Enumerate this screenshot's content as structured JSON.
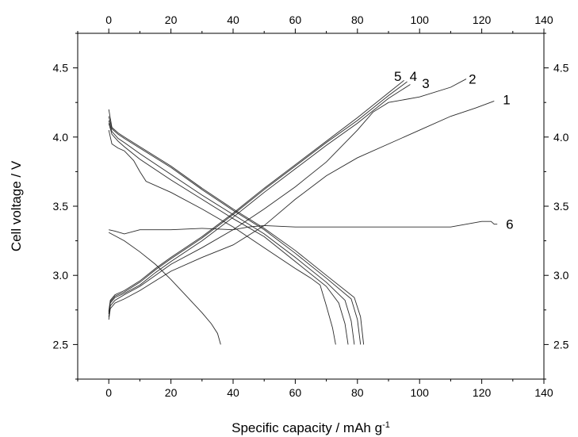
{
  "chart_data": {
    "type": "line",
    "xlabel": "Specific capacity / mAh g",
    "xlabel_superscript": "-1",
    "ylabel": "Cell voltage / V",
    "xlim": [
      -10,
      140
    ],
    "ylim": [
      2.25,
      4.75
    ],
    "x_ticks": [
      0,
      20,
      40,
      60,
      80,
      100,
      120,
      140
    ],
    "x_tick_labels": [
      "0",
      "20",
      "40",
      "60",
      "80",
      "100",
      "120",
      "140"
    ],
    "y_ticks": [
      2.5,
      3.0,
      3.5,
      4.0,
      4.5
    ],
    "y_tick_labels": [
      "2.5",
      "3.0",
      "3.5",
      "4.0",
      "4.5"
    ],
    "grid": false,
    "series": [
      {
        "name": "1",
        "label_at": [
          128,
          4.27
        ],
        "points": [
          [
            0,
            2.68
          ],
          [
            0.5,
            2.76
          ],
          [
            2,
            2.8
          ],
          [
            5,
            2.83
          ],
          [
            10,
            2.89
          ],
          [
            15,
            2.96
          ],
          [
            20,
            3.03
          ],
          [
            30,
            3.13
          ],
          [
            40,
            3.22
          ],
          [
            50,
            3.36
          ],
          [
            60,
            3.55
          ],
          [
            70,
            3.72
          ],
          [
            80,
            3.85
          ],
          [
            90,
            3.95
          ],
          [
            100,
            4.05
          ],
          [
            110,
            4.15
          ],
          [
            118,
            4.21
          ],
          [
            124,
            4.26
          ]
        ]
      },
      {
        "name": "1",
        "points": [
          [
            0,
            4.05
          ],
          [
            1,
            3.95
          ],
          [
            3,
            3.92
          ],
          [
            5,
            3.9
          ],
          [
            8,
            3.83
          ],
          [
            10,
            3.75
          ],
          [
            12,
            3.68
          ],
          [
            20,
            3.6
          ],
          [
            30,
            3.48
          ],
          [
            40,
            3.35
          ],
          [
            50,
            3.2
          ],
          [
            60,
            3.05
          ],
          [
            65,
            2.98
          ],
          [
            68,
            2.93
          ],
          [
            70,
            2.78
          ],
          [
            72,
            2.62
          ],
          [
            73,
            2.5
          ]
        ]
      },
      {
        "name": "2",
        "label_at": [
          117,
          4.42
        ],
        "points": [
          [
            0,
            2.7
          ],
          [
            0.5,
            2.78
          ],
          [
            2,
            2.82
          ],
          [
            5,
            2.86
          ],
          [
            10,
            2.92
          ],
          [
            15,
            3.0
          ],
          [
            20,
            3.08
          ],
          [
            30,
            3.2
          ],
          [
            40,
            3.33
          ],
          [
            50,
            3.48
          ],
          [
            60,
            3.64
          ],
          [
            70,
            3.82
          ],
          [
            80,
            4.05
          ],
          [
            85,
            4.18
          ],
          [
            90,
            4.25
          ],
          [
            100,
            4.29
          ],
          [
            110,
            4.36
          ],
          [
            115,
            4.42
          ]
        ]
      },
      {
        "name": "2",
        "points": [
          [
            0,
            4.1
          ],
          [
            1,
            4.02
          ],
          [
            3,
            3.97
          ],
          [
            5,
            3.93
          ],
          [
            10,
            3.84
          ],
          [
            20,
            3.69
          ],
          [
            30,
            3.55
          ],
          [
            40,
            3.41
          ],
          [
            50,
            3.28
          ],
          [
            60,
            3.1
          ],
          [
            70,
            2.92
          ],
          [
            74,
            2.8
          ],
          [
            76,
            2.65
          ],
          [
            77,
            2.5
          ]
        ]
      },
      {
        "name": "3",
        "label_at": [
          102,
          4.39
        ],
        "points": [
          [
            0,
            2.72
          ],
          [
            0.5,
            2.8
          ],
          [
            2,
            2.84
          ],
          [
            5,
            2.87
          ],
          [
            10,
            2.93
          ],
          [
            15,
            3.02
          ],
          [
            20,
            3.1
          ],
          [
            30,
            3.25
          ],
          [
            40,
            3.42
          ],
          [
            50,
            3.6
          ],
          [
            60,
            3.77
          ],
          [
            70,
            3.94
          ],
          [
            80,
            4.1
          ],
          [
            90,
            4.28
          ],
          [
            97,
            4.38
          ]
        ]
      },
      {
        "name": "3",
        "points": [
          [
            0,
            4.12
          ],
          [
            1,
            4.04
          ],
          [
            3,
            3.99
          ],
          [
            5,
            3.96
          ],
          [
            10,
            3.88
          ],
          [
            20,
            3.73
          ],
          [
            30,
            3.58
          ],
          [
            40,
            3.44
          ],
          [
            50,
            3.3
          ],
          [
            60,
            3.13
          ],
          [
            70,
            2.95
          ],
          [
            76,
            2.82
          ],
          [
            78,
            2.67
          ],
          [
            79,
            2.5
          ]
        ]
      },
      {
        "name": "4",
        "label_at": [
          98,
          4.44
        ],
        "points": [
          [
            0,
            2.73
          ],
          [
            0.5,
            2.81
          ],
          [
            2,
            2.85
          ],
          [
            5,
            2.88
          ],
          [
            10,
            2.95
          ],
          [
            15,
            3.04
          ],
          [
            20,
            3.12
          ],
          [
            30,
            3.27
          ],
          [
            40,
            3.44
          ],
          [
            50,
            3.62
          ],
          [
            60,
            3.79
          ],
          [
            70,
            3.96
          ],
          [
            80,
            4.12
          ],
          [
            90,
            4.3
          ],
          [
            96,
            4.4
          ]
        ]
      },
      {
        "name": "4",
        "points": [
          [
            0,
            4.15
          ],
          [
            1,
            4.06
          ],
          [
            3,
            4.02
          ],
          [
            5,
            3.99
          ],
          [
            10,
            3.92
          ],
          [
            20,
            3.78
          ],
          [
            30,
            3.62
          ],
          [
            40,
            3.47
          ],
          [
            50,
            3.33
          ],
          [
            60,
            3.16
          ],
          [
            70,
            2.98
          ],
          [
            78,
            2.83
          ],
          [
            80,
            2.68
          ],
          [
            81,
            2.5
          ]
        ]
      },
      {
        "name": "5",
        "label_at": [
          93,
          4.44
        ],
        "points": [
          [
            0,
            2.74
          ],
          [
            0.5,
            2.82
          ],
          [
            2,
            2.86
          ],
          [
            5,
            2.89
          ],
          [
            10,
            2.96
          ],
          [
            15,
            3.05
          ],
          [
            20,
            3.13
          ],
          [
            30,
            3.28
          ],
          [
            40,
            3.45
          ],
          [
            50,
            3.63
          ],
          [
            60,
            3.8
          ],
          [
            70,
            3.97
          ],
          [
            80,
            4.14
          ],
          [
            90,
            4.32
          ],
          [
            95,
            4.41
          ]
        ]
      },
      {
        "name": "5",
        "points": [
          [
            0,
            4.2
          ],
          [
            1,
            4.07
          ],
          [
            3,
            4.03
          ],
          [
            5,
            4.0
          ],
          [
            10,
            3.93
          ],
          [
            20,
            3.79
          ],
          [
            30,
            3.63
          ],
          [
            40,
            3.48
          ],
          [
            50,
            3.34
          ],
          [
            60,
            3.18
          ],
          [
            70,
            3.0
          ],
          [
            79,
            2.84
          ],
          [
            81,
            2.7
          ],
          [
            82,
            2.5
          ]
        ]
      },
      {
        "name": "6",
        "label_at": [
          129,
          3.37
        ],
        "points": [
          [
            0,
            3.33
          ],
          [
            2,
            3.32
          ],
          [
            5,
            3.3
          ],
          [
            10,
            3.33
          ],
          [
            20,
            3.33
          ],
          [
            30,
            3.34
          ],
          [
            40,
            3.33
          ],
          [
            45,
            3.35
          ],
          [
            50,
            3.36
          ],
          [
            60,
            3.35
          ],
          [
            70,
            3.35
          ],
          [
            80,
            3.35
          ],
          [
            90,
            3.35
          ],
          [
            100,
            3.35
          ],
          [
            110,
            3.35
          ],
          [
            115,
            3.37
          ],
          [
            120,
            3.39
          ],
          [
            123,
            3.39
          ],
          [
            124,
            3.37
          ],
          [
            125,
            3.37
          ]
        ]
      },
      {
        "name": "6",
        "points": [
          [
            0,
            3.31
          ],
          [
            5,
            3.25
          ],
          [
            10,
            3.17
          ],
          [
            15,
            3.08
          ],
          [
            20,
            2.97
          ],
          [
            25,
            2.85
          ],
          [
            30,
            2.73
          ],
          [
            33,
            2.65
          ],
          [
            35,
            2.58
          ],
          [
            36,
            2.5
          ]
        ]
      }
    ]
  }
}
